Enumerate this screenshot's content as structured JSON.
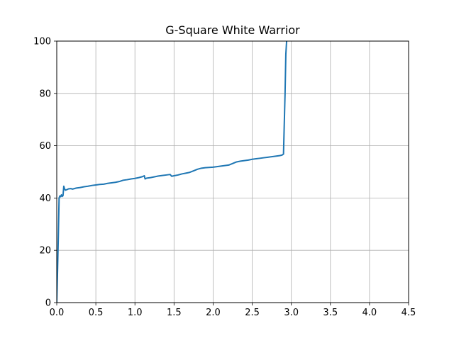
{
  "chart_data": {
    "type": "line",
    "title": "G-Square White Warrior",
    "xlabel": "",
    "ylabel": "",
    "xlim": [
      0.0,
      4.5
    ],
    "ylim": [
      0,
      100
    ],
    "grid": true,
    "x_ticks": [
      "0.0",
      "0.5",
      "1.0",
      "1.5",
      "2.0",
      "2.5",
      "3.0",
      "3.5",
      "4.0",
      "4.5"
    ],
    "y_ticks": [
      "0",
      "20",
      "40",
      "60",
      "80",
      "100"
    ],
    "series": [
      {
        "color": "#1f77b4",
        "x": [
          0.0,
          0.01,
          0.02,
          0.03,
          0.04,
          0.05,
          0.06,
          0.07,
          0.08,
          0.09,
          0.1,
          0.11,
          0.13,
          0.15,
          0.18,
          0.2,
          0.25,
          0.3,
          0.35,
          0.4,
          0.45,
          0.5,
          0.55,
          0.6,
          0.65,
          0.7,
          0.75,
          0.8,
          0.85,
          0.9,
          0.95,
          1.0,
          1.05,
          1.1,
          1.12,
          1.13,
          1.15,
          1.2,
          1.25,
          1.3,
          1.35,
          1.4,
          1.45,
          1.47,
          1.5,
          1.55,
          1.6,
          1.65,
          1.7,
          1.75,
          1.8,
          1.85,
          1.9,
          1.95,
          2.0,
          2.05,
          2.1,
          2.15,
          2.2,
          2.25,
          2.3,
          2.35,
          2.4,
          2.45,
          2.5,
          2.55,
          2.6,
          2.65,
          2.7,
          2.75,
          2.8,
          2.85,
          2.88,
          2.9,
          2.92,
          2.93,
          2.94
        ],
        "y": [
          0,
          12,
          25,
          40,
          40.8,
          40.5,
          41.2,
          40.6,
          40.9,
          44.5,
          43.5,
          43.0,
          43.2,
          43.5,
          43.6,
          43.4,
          43.8,
          44.0,
          44.3,
          44.5,
          44.8,
          45.0,
          45.2,
          45.3,
          45.6,
          45.8,
          46.0,
          46.3,
          46.8,
          47.0,
          47.3,
          47.5,
          47.8,
          48.2,
          48.5,
          47.3,
          47.6,
          47.8,
          48.1,
          48.4,
          48.6,
          48.8,
          49.0,
          48.3,
          48.5,
          48.8,
          49.2,
          49.5,
          49.8,
          50.4,
          51.0,
          51.4,
          51.6,
          51.7,
          51.8,
          52.0,
          52.2,
          52.4,
          52.6,
          53.2,
          53.8,
          54.1,
          54.3,
          54.5,
          54.8,
          55.0,
          55.2,
          55.4,
          55.6,
          55.8,
          56.0,
          56.2,
          56.4,
          56.8,
          80,
          95,
          100
        ]
      }
    ]
  }
}
